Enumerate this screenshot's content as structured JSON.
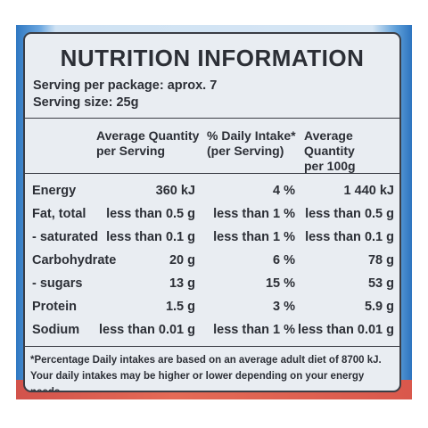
{
  "label": {
    "title": "NUTRITION INFORMATION",
    "servings_per_package": "Serving per package: aprox. 7",
    "serving_size": "Serving size: 25g",
    "columns": [
      "Average Quantity\nper Serving",
      "% Daily Intake*\n(per Serving)",
      "Average Quantity\nper 100g"
    ],
    "rows": [
      {
        "name": "Energy",
        "per_serving": "360 kJ",
        "daily_intake": "4 %",
        "per_100g": "1 440 kJ"
      },
      {
        "name": "Fat, total",
        "per_serving": "less than 0.5 g",
        "daily_intake": "less than 1 %",
        "per_100g": "less than 0.5 g"
      },
      {
        "name": "- saturated",
        "per_serving": "less than 0.1 g",
        "daily_intake": "less than 1 %",
        "per_100g": "less than 0.1 g"
      },
      {
        "name": "Carbohydrate",
        "per_serving": "20 g",
        "daily_intake": "6 %",
        "per_100g": "78 g"
      },
      {
        "name": "- sugars",
        "per_serving": "13 g",
        "daily_intake": "15 %",
        "per_100g": "53 g"
      },
      {
        "name": "Protein",
        "per_serving": "1.5 g",
        "daily_intake": "3 %",
        "per_100g": "5.9 g"
      },
      {
        "name": "Sodium",
        "per_serving": "less than 0.01 g",
        "daily_intake": "less than 1 %",
        "per_100g": "less than 0.01 g"
      }
    ],
    "footnote_line1": "*Percentage Daily intakes are based on an average adult diet of 8700 kJ.",
    "footnote_line2": "Your daily intakes may be higher or lower depending on your energy needs."
  },
  "colors": {
    "border": "#3a3d45",
    "panel": "#e9edf2",
    "text": "#2c2f36",
    "packaging_blue": "#2f78c2",
    "packaging_red": "#d2534b"
  }
}
